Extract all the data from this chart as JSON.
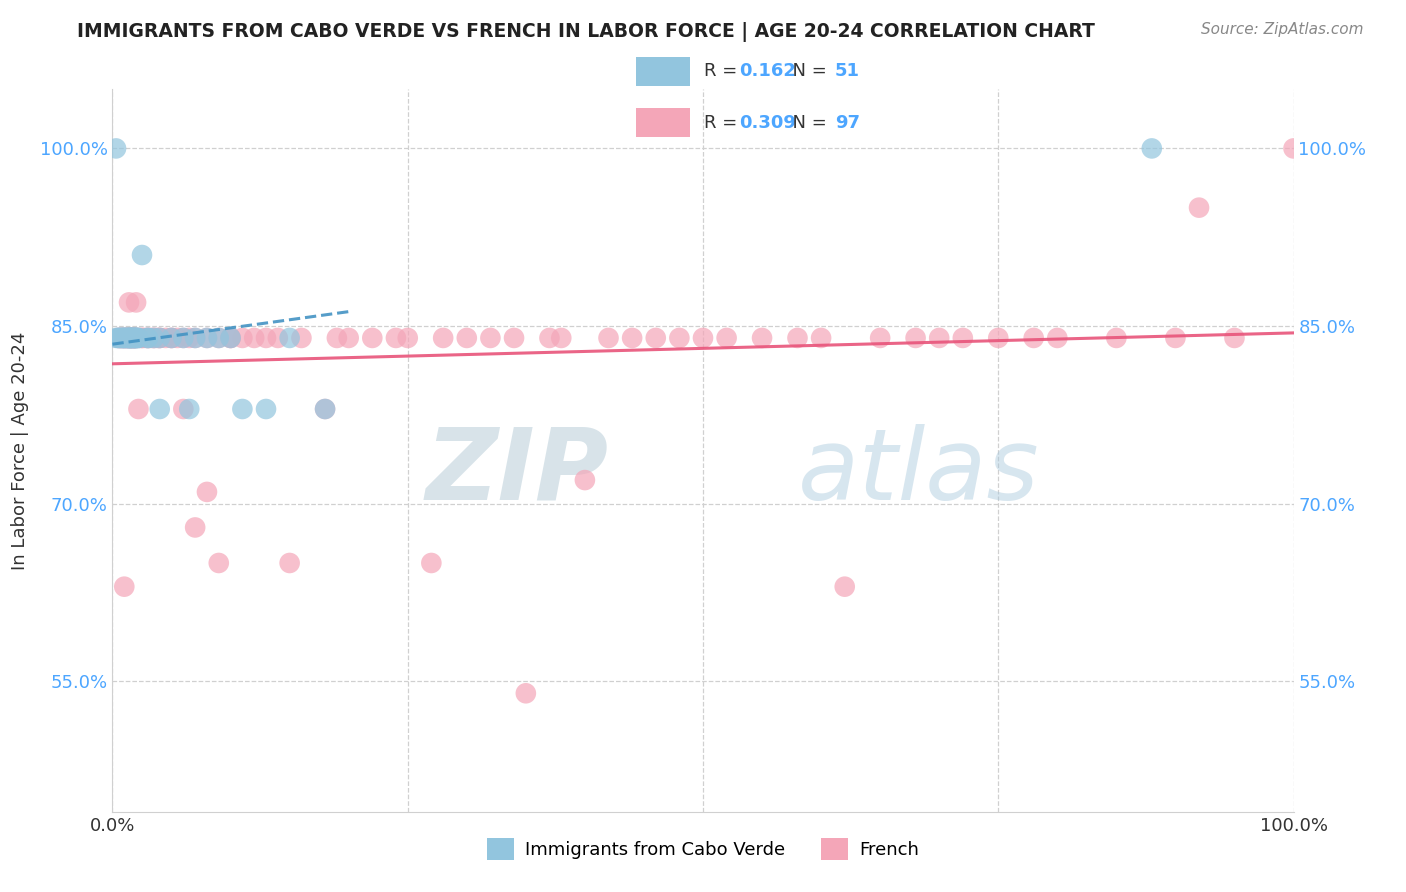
{
  "title": "IMMIGRANTS FROM CABO VERDE VS FRENCH IN LABOR FORCE | AGE 20-24 CORRELATION CHART",
  "source": "Source: ZipAtlas.com",
  "ylabel": "In Labor Force | Age 20-24",
  "xlim": [
    0.0,
    1.0
  ],
  "ylim": [
    0.44,
    1.05
  ],
  "y_ticks": [
    0.55,
    0.7,
    0.85,
    1.0
  ],
  "y_tick_labels": [
    "55.0%",
    "70.0%",
    "85.0%",
    "100.0%"
  ],
  "x_ticks": [
    0.0,
    0.25,
    0.5,
    0.75,
    1.0
  ],
  "x_tick_labels": [
    "0.0%",
    "",
    "",
    "",
    "100.0%"
  ],
  "cabo_verde_color": "#92c5de",
  "french_color": "#f4a6b8",
  "cabo_verde_line_color": "#4393c3",
  "french_line_color": "#e8547a",
  "cabo_verde_x": [
    0.003,
    0.003,
    0.005,
    0.005,
    0.007,
    0.007,
    0.008,
    0.009,
    0.01,
    0.01,
    0.01,
    0.012,
    0.012,
    0.013,
    0.013,
    0.014,
    0.014,
    0.015,
    0.015,
    0.015,
    0.016,
    0.016,
    0.017,
    0.017,
    0.018,
    0.018,
    0.019,
    0.019,
    0.02,
    0.02,
    0.02,
    0.022,
    0.022,
    0.025,
    0.03,
    0.03,
    0.035,
    0.04,
    0.04,
    0.05,
    0.06,
    0.065,
    0.07,
    0.08,
    0.09,
    0.1,
    0.11,
    0.13,
    0.15,
    0.18,
    0.88
  ],
  "cabo_verde_y": [
    1.0,
    0.84,
    0.84,
    0.84,
    0.84,
    0.84,
    0.84,
    0.84,
    0.84,
    0.84,
    0.84,
    0.84,
    0.84,
    0.84,
    0.84,
    0.84,
    0.84,
    0.84,
    0.84,
    0.84,
    0.84,
    0.84,
    0.84,
    0.84,
    0.84,
    0.84,
    0.84,
    0.84,
    0.84,
    0.84,
    0.84,
    0.84,
    0.84,
    0.91,
    0.84,
    0.84,
    0.84,
    0.78,
    0.84,
    0.84,
    0.84,
    0.78,
    0.84,
    0.84,
    0.84,
    0.84,
    0.78,
    0.78,
    0.84,
    0.78,
    1.0
  ],
  "french_x": [
    0.005,
    0.006,
    0.007,
    0.008,
    0.009,
    0.01,
    0.01,
    0.01,
    0.012,
    0.012,
    0.013,
    0.013,
    0.014,
    0.015,
    0.015,
    0.015,
    0.016,
    0.016,
    0.017,
    0.017,
    0.018,
    0.018,
    0.019,
    0.019,
    0.02,
    0.02,
    0.022,
    0.022,
    0.025,
    0.025,
    0.028,
    0.03,
    0.03,
    0.032,
    0.035,
    0.035,
    0.038,
    0.04,
    0.04,
    0.045,
    0.05,
    0.05,
    0.055,
    0.06,
    0.06,
    0.065,
    0.07,
    0.07,
    0.08,
    0.08,
    0.09,
    0.09,
    0.1,
    0.1,
    0.11,
    0.12,
    0.13,
    0.14,
    0.15,
    0.16,
    0.18,
    0.19,
    0.2,
    0.22,
    0.24,
    0.25,
    0.27,
    0.28,
    0.3,
    0.32,
    0.34,
    0.35,
    0.37,
    0.38,
    0.4,
    0.42,
    0.44,
    0.46,
    0.48,
    0.5,
    0.52,
    0.55,
    0.58,
    0.6,
    0.62,
    0.65,
    0.68,
    0.7,
    0.72,
    0.75,
    0.78,
    0.8,
    0.85,
    0.9,
    0.92,
    0.95,
    1.0
  ],
  "french_y": [
    0.84,
    0.84,
    0.84,
    0.84,
    0.84,
    0.84,
    0.84,
    0.63,
    0.84,
    0.84,
    0.84,
    0.84,
    0.87,
    0.84,
    0.84,
    0.84,
    0.84,
    0.84,
    0.84,
    0.84,
    0.84,
    0.84,
    0.84,
    0.84,
    0.87,
    0.84,
    0.78,
    0.84,
    0.84,
    0.84,
    0.84,
    0.84,
    0.84,
    0.84,
    0.84,
    0.84,
    0.84,
    0.84,
    0.84,
    0.84,
    0.84,
    0.84,
    0.84,
    0.84,
    0.78,
    0.84,
    0.84,
    0.68,
    0.84,
    0.71,
    0.84,
    0.65,
    0.84,
    0.84,
    0.84,
    0.84,
    0.84,
    0.84,
    0.65,
    0.84,
    0.78,
    0.84,
    0.84,
    0.84,
    0.84,
    0.84,
    0.65,
    0.84,
    0.84,
    0.84,
    0.84,
    0.54,
    0.84,
    0.84,
    0.72,
    0.84,
    0.84,
    0.84,
    0.84,
    0.84,
    0.84,
    0.84,
    0.84,
    0.84,
    0.63,
    0.84,
    0.84,
    0.84,
    0.84,
    0.84,
    0.84,
    0.84,
    0.84,
    0.84,
    0.95,
    0.84,
    1.0
  ],
  "watermark_zip": "ZIP",
  "watermark_atlas": "atlas",
  "grid_color": "#d0d0d0",
  "background_color": "#ffffff",
  "tick_color": "#4da6ff",
  "legend_r1": "0.162",
  "legend_n1": "51",
  "legend_r2": "0.309",
  "legend_n2": "97"
}
